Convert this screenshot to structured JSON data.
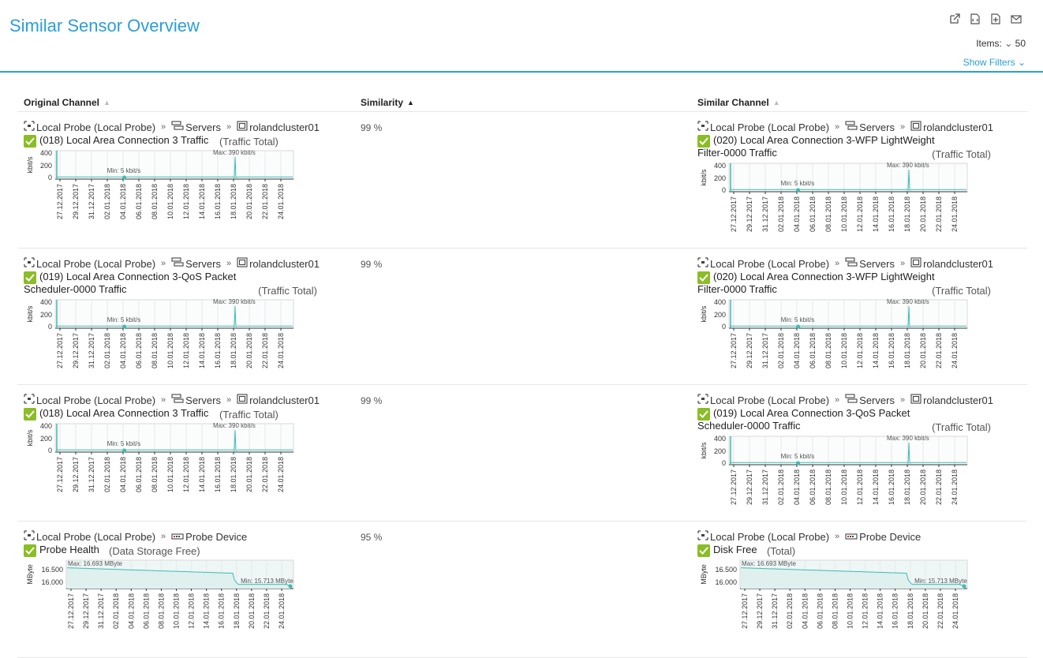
{
  "header": {
    "title": "Similar Sensor Overview",
    "items_label": "Items:",
    "items_value": "50",
    "show_filters": "Show Filters"
  },
  "toolbar_icons": [
    "external-link-icon",
    "xml-file-icon",
    "export-file-icon",
    "mail-icon"
  ],
  "columns": {
    "original": "Original Channel",
    "similarity": "Similarity",
    "similar": "Similar Channel"
  },
  "chart_axis_dates": [
    "27.12.2017",
    "29.12.2017",
    "31.12.2017",
    "02.01.2018",
    "04.01.2018",
    "06.01.2018",
    "08.01.2018",
    "10.01.2018",
    "12.01.2018",
    "14.01.2018",
    "16.01.2018",
    "18.01.2018",
    "20.01.2018",
    "22.01.2018",
    "24.01.2018"
  ],
  "rows": [
    {
      "original": {
        "probe": "Local Probe (Local Probe)",
        "group": "Servers",
        "device": "roland​cluster01",
        "channel_line1": "(018) Local Area Connection 3 Traffic",
        "channel_line2": "",
        "channel_type": "(Traffic Total)",
        "chart": {
          "type": "traffic",
          "ylabel": "kbit/s",
          "yticks": [
            "400",
            "200",
            "0"
          ],
          "max_label": "Max: 390 kbit/s",
          "min_label": "Min: 5 kbit/s"
        }
      },
      "similarity": "99 %",
      "similar": {
        "probe": "Local Probe (Local Probe)",
        "group": "Servers",
        "device": "rolandcluster01",
        "channel_line1": "(020) Local Area Connection 3-WFP LightWeight",
        "channel_line2": "Filter-0000 Traffic",
        "channel_type": "(Traffic Total)",
        "chart": {
          "type": "traffic",
          "ylabel": "kbit/s",
          "yticks": [
            "400",
            "200",
            "0"
          ],
          "max_label": "Max: 390 kbit/s",
          "min_label": "Min: 5 kbit/s"
        }
      }
    },
    {
      "original": {
        "probe": "Local Probe (Local Probe)",
        "group": "Servers",
        "device": "rolandcluster01",
        "channel_line1": "(019) Local Area Connection 3-QoS Packet",
        "channel_line2": "Scheduler-0000 Traffic",
        "channel_type": "(Traffic Total)",
        "chart": {
          "type": "traffic",
          "ylabel": "kbit/s",
          "yticks": [
            "400",
            "200",
            "0"
          ],
          "max_label": "Max: 390 kbit/s",
          "min_label": "Min: 5 kbit/s"
        }
      },
      "similarity": "99 %",
      "similar": {
        "probe": "Local Probe (Local Probe)",
        "group": "Servers",
        "device": "rolandcluster01",
        "channel_line1": "(020) Local Area Connection 3-WFP LightWeight",
        "channel_line2": "Filter-0000 Traffic",
        "channel_type": "(Traffic Total)",
        "chart": {
          "type": "traffic",
          "ylabel": "kbit/s",
          "yticks": [
            "400",
            "200",
            "0"
          ],
          "max_label": "Max: 390 kbit/s",
          "min_label": "Min: 5 kbit/s"
        }
      }
    },
    {
      "original": {
        "probe": "Local Probe (Local Probe)",
        "group": "Servers",
        "device": "rolandcluster01",
        "channel_line1": "(018) Local Area Connection 3 Traffic",
        "channel_line2": "",
        "channel_type": "(Traffic Total)",
        "chart": {
          "type": "traffic",
          "ylabel": "kbit/s",
          "yticks": [
            "400",
            "200",
            "0"
          ],
          "max_label": "Max: 390 kbit/s",
          "min_label": "Min: 5 kbit/s"
        }
      },
      "similarity": "99 %",
      "similar": {
        "probe": "Local Probe (Local Probe)",
        "group": "Servers",
        "device": "rolandcluster01",
        "channel_line1": "(019) Local Area Connection 3-QoS Packet",
        "channel_line2": "Scheduler-0000 Traffic",
        "channel_type": "(Traffic Total)",
        "chart": {
          "type": "traffic",
          "ylabel": "kbit/s",
          "yticks": [
            "400",
            "200",
            "0"
          ],
          "max_label": "Max: 390 kbit/s",
          "min_label": "Min: 5 kbit/s"
        }
      }
    },
    {
      "original": {
        "probe": "Local Probe (Local Probe)",
        "group": "",
        "device": "Probe Device",
        "channel_line1": "Probe Health",
        "channel_line2": "",
        "channel_type": "(Data Storage Free)",
        "chart": {
          "type": "storage",
          "ylabel": "MByte",
          "yticks": [
            "16.500",
            "16.000"
          ],
          "max_label": "Max: 16.693 MByte",
          "min_label": "Min: 15.713 MByte"
        }
      },
      "similarity": "95 %",
      "similar": {
        "probe": "Local Probe (Local Probe)",
        "group": "",
        "device": "Probe Device",
        "channel_line1": "Disk Free",
        "channel_line2": "",
        "channel_type": "(Total)",
        "chart": {
          "type": "storage",
          "ylabel": "MByte",
          "yticks": [
            "16.500",
            "16.000"
          ],
          "max_label": "Max: 16.693 MByte",
          "min_label": "Min: 15.713 MByte"
        }
      }
    }
  ],
  "colors": {
    "accent": "#2a9fd6",
    "check": "#8bbd26",
    "line": "#3cbcb4"
  }
}
